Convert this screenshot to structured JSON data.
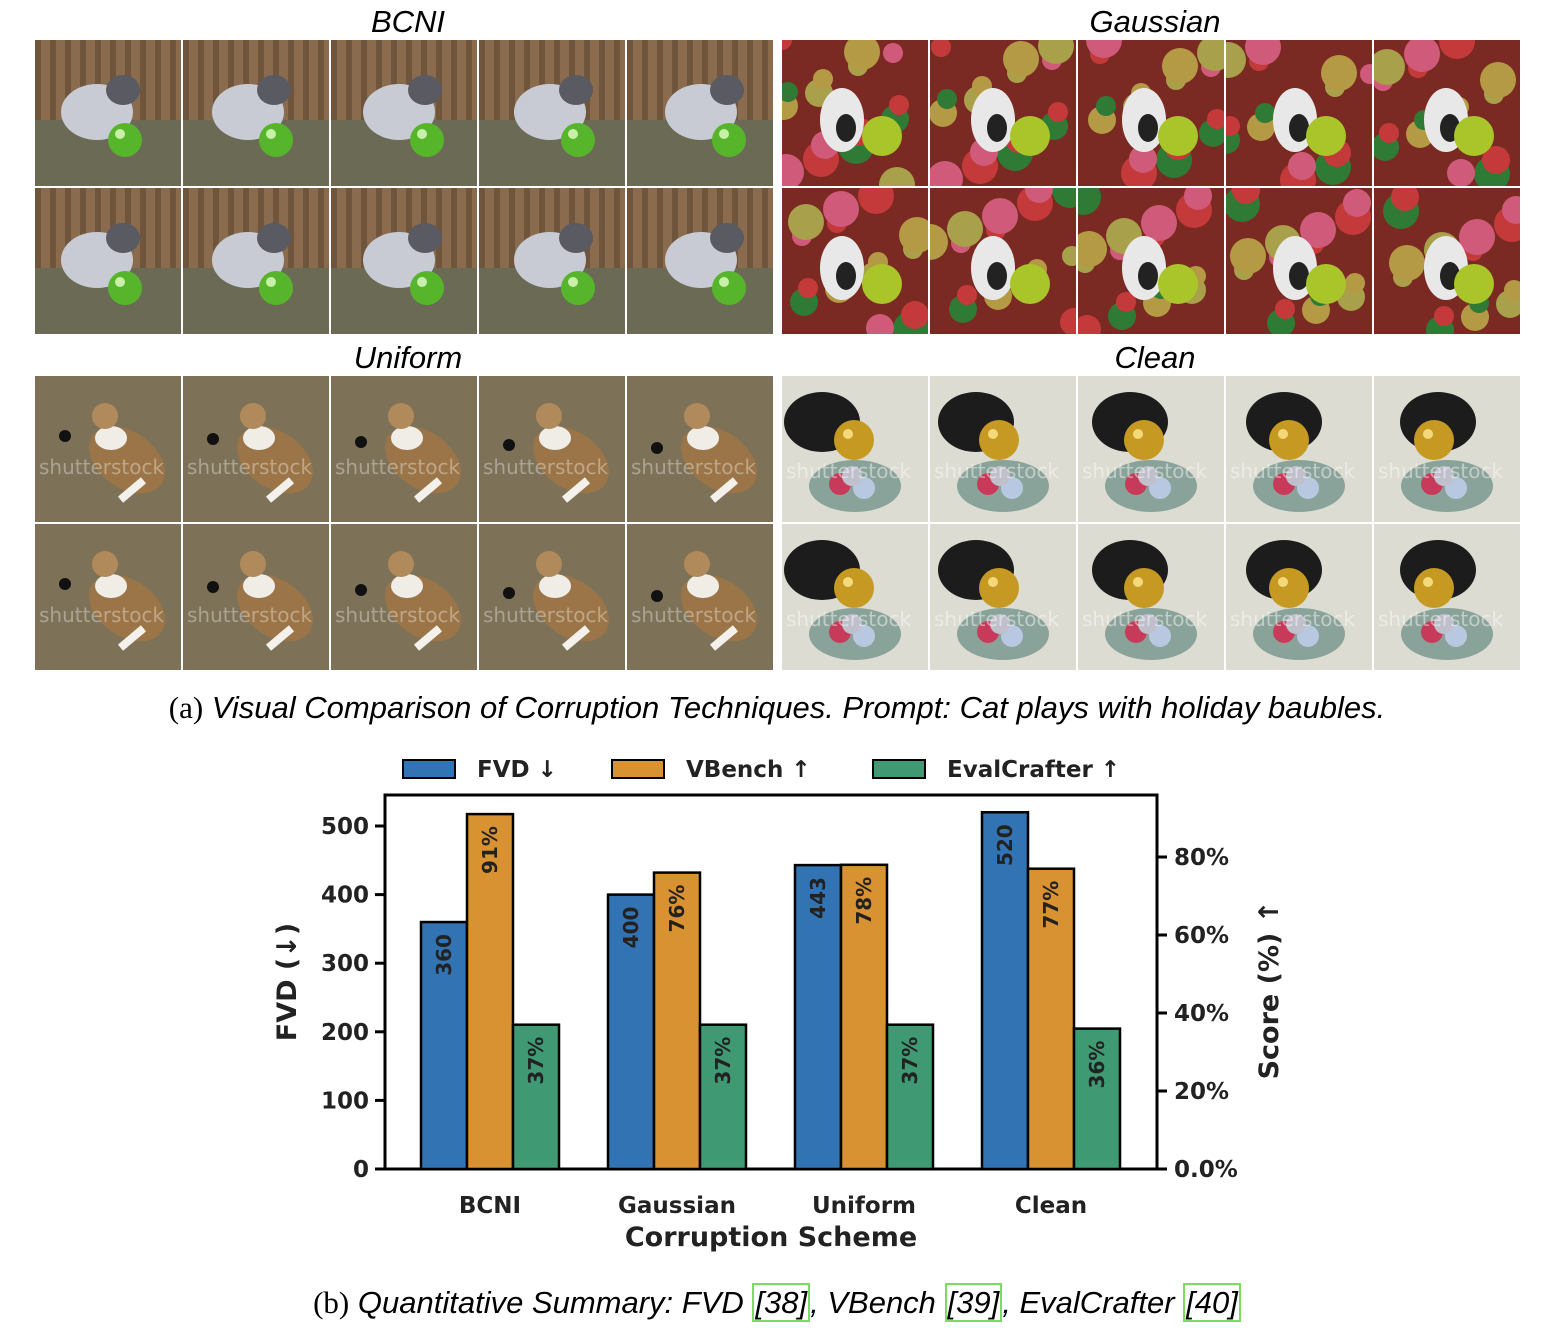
{
  "panels": [
    {
      "title": "BCNI",
      "theme": "bcni"
    },
    {
      "title": "Gaussian",
      "theme": "gaussian"
    },
    {
      "title": "Uniform",
      "theme": "uniform"
    },
    {
      "title": "Clean",
      "theme": "clean"
    }
  ],
  "caption_a": {
    "label": "(a)",
    "text": "Visual Comparison of Corruption Techniques. Prompt: Cat plays with holiday baubles."
  },
  "caption_b": {
    "label": "(b)",
    "text_pre": "Quantitative Summary: FVD ",
    "cite1": "[38]",
    "mid1": ", VBench ",
    "cite2": "[39]",
    "mid2": ", EvalCrafter ",
    "cite3": "[40]"
  },
  "colors": {
    "fvd": "#3274b3",
    "vbench": "#d99231",
    "evalcrafter": "#3f9a74"
  },
  "chart_data": {
    "type": "bar",
    "categories": [
      "BCNI",
      "Gaussian",
      "Uniform",
      "Clean"
    ],
    "xlabel": "Corruption Scheme",
    "ylabel_left": "FVD (↓)",
    "ylabel_right": "Score (%) ↑",
    "ylim_left": [
      0,
      550
    ],
    "ylim_right": [
      0,
      100
    ],
    "left_ticks": [
      "0",
      "100",
      "200",
      "300",
      "400",
      "500"
    ],
    "right_ticks": [
      "0.0%",
      "20%",
      "40%",
      "60%",
      "80%"
    ],
    "legend_position": "top",
    "series": [
      {
        "name": "FVD ↓",
        "axis": "left",
        "values": [
          360,
          400,
          443,
          520
        ],
        "labels": [
          "360",
          "400",
          "443",
          "520"
        ]
      },
      {
        "name": "VBench ↑",
        "axis": "right",
        "values": [
          91,
          76,
          78,
          77
        ],
        "labels": [
          "91%",
          "76%",
          "78%",
          "77%"
        ]
      },
      {
        "name": "EvalCrafter ↑",
        "axis": "right",
        "values": [
          37,
          37,
          37,
          36
        ],
        "labels": [
          "37%",
          "37%",
          "37%",
          "36%"
        ]
      }
    ]
  }
}
